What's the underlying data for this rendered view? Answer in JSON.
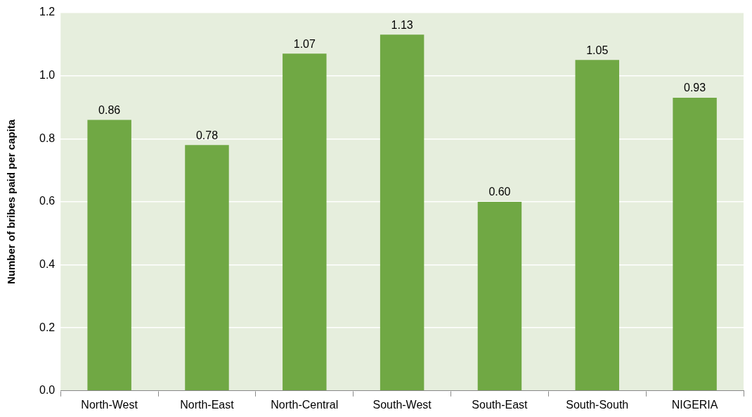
{
  "chart_data": {
    "type": "bar",
    "ylabel": "Number of bribes paid per capita",
    "categories": [
      "North-West",
      "North-East",
      "North-Central",
      "South-West",
      "South-East",
      "South-South",
      "NIGERIA"
    ],
    "values": [
      0.86,
      0.78,
      1.07,
      1.13,
      0.6,
      1.05,
      0.93
    ],
    "value_labels": [
      "0.86",
      "0.78",
      "1.07",
      "1.13",
      "0.60",
      "1.05",
      "0.93"
    ],
    "color": "#70a844",
    "ylim": [
      0,
      1.2
    ],
    "yticks": [
      {
        "value": 0,
        "label": "0.0"
      },
      {
        "value": 0.2,
        "label": "0.2"
      },
      {
        "value": 0.4,
        "label": "0.4"
      },
      {
        "value": 0.6,
        "label": "0.6"
      },
      {
        "value": 0.8,
        "label": "0.8"
      },
      {
        "value": 1,
        "label": "1.0"
      },
      {
        "value": 1.2,
        "label": "1.2"
      }
    ],
    "grid": "y"
  }
}
